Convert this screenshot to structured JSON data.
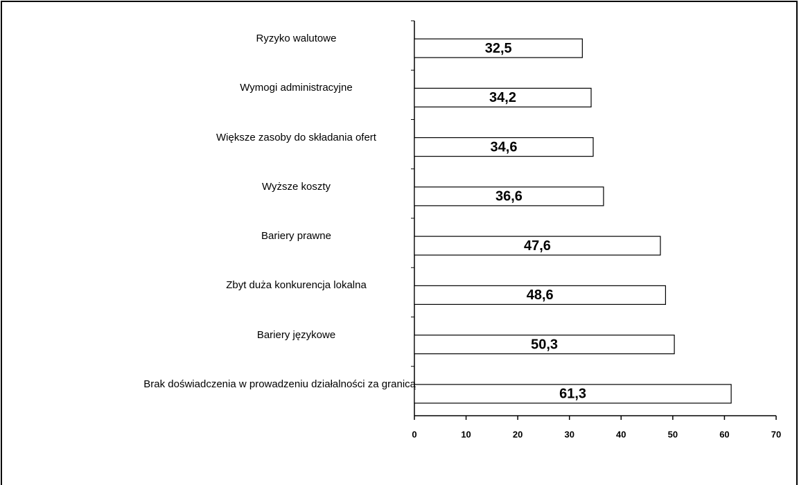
{
  "chart_data": {
    "type": "hbar",
    "categories": [
      "Ryzyko walutowe",
      "Wymogi administracyjne",
      "Większe zasoby do składania ofert",
      "Wyższe koszty",
      "Bariery prawne",
      "Zbyt duża konkurencja lokalna",
      "Bariery językowe",
      "Brak doświadczenia w prowadzeniu  działalności za granicą"
    ],
    "values": [
      32.5,
      34.2,
      34.6,
      36.6,
      47.6,
      48.6,
      50.3,
      61.3
    ],
    "value_labels": [
      "32,5",
      "34,2",
      "34,6",
      "36,6",
      "47,6",
      "48,6",
      "50,3",
      "61,3"
    ],
    "color": "#ffffff",
    "xlim": [
      0,
      70
    ],
    "xticks": [
      0,
      10,
      20,
      30,
      40,
      50,
      60,
      70
    ],
    "grid": false
  }
}
